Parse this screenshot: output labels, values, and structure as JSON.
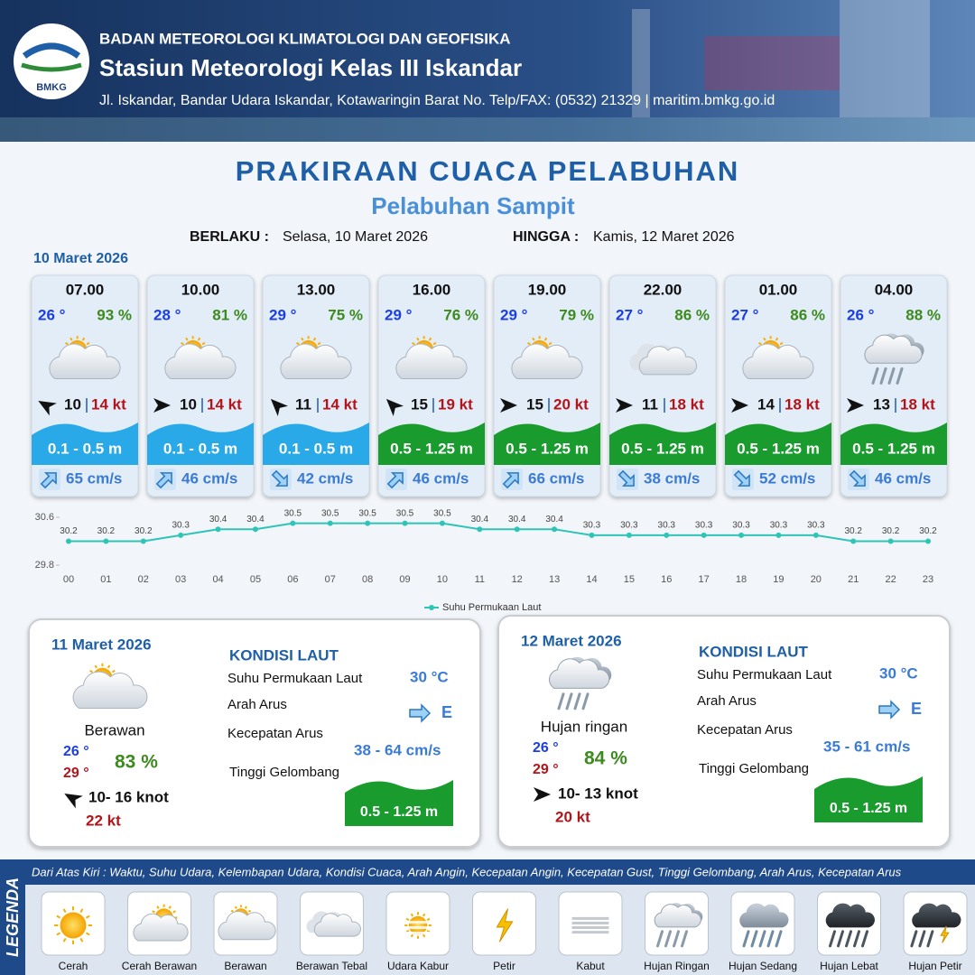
{
  "header": {
    "agency": "BADAN METEOROLOGI KLIMATOLOGI DAN GEOFISIKA",
    "station": "Stasiun Meteorologi Kelas III Iskandar",
    "address": "Jl. Iskandar, Bandar Udara Iskandar, Kotawaringin Barat No. Telp/FAX: (0532) 21329 | maritim.bmkg.go.id",
    "logo": "BMKG"
  },
  "title": "PRAKIRAAN CUACA PELABUHAN",
  "subtitle": "Pelabuhan Sampit",
  "validity": {
    "from_label": "BERLAKU :",
    "from": "Selasa, 10 Maret 2026",
    "to_label": "HINGGA :",
    "to": "Kamis, 12 Maret 2026"
  },
  "day1": {
    "date": "10 Maret 2026",
    "cards": [
      {
        "time": "07.00",
        "temp": "26 °",
        "humidity": "93 %",
        "wind": "10",
        "gust": "14 kt",
        "wave": "0.1 - 0.5 m",
        "current": "65 cm/s"
      },
      {
        "time": "10.00",
        "temp": "28 °",
        "humidity": "81 %",
        "wind": "10",
        "gust": "14 kt",
        "wave": "0.1 - 0.5 m",
        "current": "46 cm/s"
      },
      {
        "time": "13.00",
        "temp": "29 °",
        "humidity": "75 %",
        "wind": "11",
        "gust": "14 kt",
        "wave": "0.1 - 0.5 m",
        "current": "42 cm/s"
      },
      {
        "time": "16.00",
        "temp": "29 °",
        "humidity": "76 %",
        "wind": "15",
        "gust": "19 kt",
        "wave": "0.5 - 1.25 m",
        "current": "46 cm/s"
      },
      {
        "time": "19.00",
        "temp": "29 °",
        "humidity": "79 %",
        "wind": "15",
        "gust": "20 kt",
        "wave": "0.5 - 1.25 m",
        "current": "66 cm/s"
      },
      {
        "time": "22.00",
        "temp": "27 °",
        "humidity": "86 %",
        "wind": "11",
        "gust": "18 kt",
        "wave": "0.5 - 1.25 m",
        "current": "38 cm/s"
      },
      {
        "time": "01.00",
        "temp": "27 °",
        "humidity": "86 %",
        "wind": "14",
        "gust": "18 kt",
        "wave": "0.5 - 1.25 m",
        "current": "52 cm/s"
      },
      {
        "time": "04.00",
        "temp": "26 °",
        "humidity": "88 %",
        "wind": "13",
        "gust": "18 kt",
        "wave": "0.5 - 1.25 m",
        "current": "46 cm/s"
      }
    ]
  },
  "chart_data": {
    "type": "line",
    "categories": [
      "00",
      "01",
      "02",
      "03",
      "04",
      "05",
      "06",
      "07",
      "08",
      "09",
      "10",
      "11",
      "12",
      "13",
      "14",
      "15",
      "16",
      "17",
      "18",
      "19",
      "20",
      "21",
      "22",
      "23"
    ],
    "series": [
      {
        "name": "Suhu Permukaan Laut",
        "color": "#2ec4b6",
        "values": [
          30.2,
          30.2,
          30.2,
          30.3,
          30.4,
          30.4,
          30.5,
          30.5,
          30.5,
          30.5,
          30.5,
          30.4,
          30.4,
          30.4,
          30.3,
          30.3,
          30.3,
          30.3,
          30.3,
          30.3,
          30.3,
          30.2,
          30.2,
          30.2
        ]
      }
    ],
    "ylim": [
      29.8,
      30.6
    ],
    "yticks": [
      29.8,
      30.6
    ]
  },
  "days": [
    {
      "date": "11 Maret 2026",
      "condition": "Berawan",
      "temp_min": "26 °",
      "temp_max": "29 °",
      "humidity": "83 %",
      "wind": "10- 16 knot",
      "gust": "22 kt",
      "sea_title": "KONDISI LAUT",
      "sst_label": "Suhu Permukaan Laut",
      "sst": "30 °C",
      "dir_label": "Arah Arus",
      "dir": "E",
      "speed_label": "Kecepatan Arus",
      "speed": "38  - 64 cm/s",
      "wave_label": "Tinggi Gelombang",
      "wave": "0.5 - 1.25 m"
    },
    {
      "date": "12 Maret 2026",
      "condition": "Hujan ringan",
      "temp_min": "26 °",
      "temp_max": "29 °",
      "humidity": "84 %",
      "wind": "10- 13 knot",
      "gust": "20 kt",
      "sea_title": "KONDISI LAUT",
      "sst_label": "Suhu Permukaan Laut",
      "sst": "30 °C",
      "dir_label": "Arah Arus",
      "dir": "E",
      "speed_label": "Kecepatan Arus",
      "speed": "35 - 61 cm/s",
      "wave_label": "Tinggi Gelombang",
      "wave": "0.5 - 1.25 m"
    }
  ],
  "legend": {
    "title": "LEGENDA",
    "description": "Dari Atas Kiri : Waktu, Suhu Udara, Kelembapan Udara, Kondisi Cuaca, Arah Angin, Kecepatan Angin, Kecepatan Gust, Tinggi Gelombang, Arah Arus, Kecepatan Arus",
    "items": [
      "Cerah",
      "Cerah Berawan",
      "Berawan",
      "Berawan Tebal",
      "Udara Kabur",
      "Petir",
      "Kabut",
      "Hujan Ringan",
      "Hujan Sedang",
      "Hujan Lebat",
      "Hujan Petir"
    ]
  }
}
